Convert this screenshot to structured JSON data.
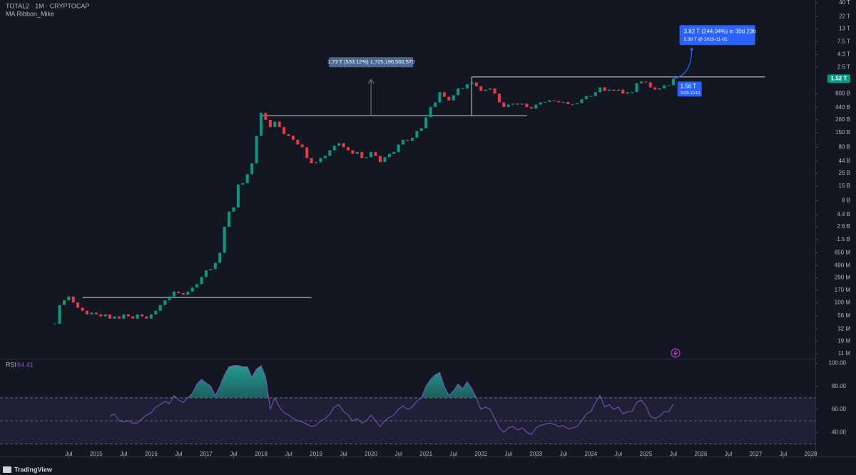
{
  "chart_data": {
    "type": "candlestick",
    "symbol": "TOTAL2 · 1M · CRYPTOCAP",
    "indicator": "MA Ribbon_Mike",
    "log_scale": true,
    "up_color": "#089981",
    "down_color": "#f23645",
    "xlim": [
      "2013-04",
      "2028-02"
    ],
    "ylim": [
      8900000.0,
      45000000000000.0
    ],
    "x": [
      "2014-04",
      "2014-05",
      "2014-06",
      "2014-07",
      "2014-08",
      "2014-09",
      "2014-10",
      "2014-11",
      "2014-12",
      "2015-01",
      "2015-02",
      "2015-03",
      "2015-04",
      "2015-05",
      "2015-06",
      "2015-07",
      "2015-08",
      "2015-09",
      "2015-10",
      "2015-11",
      "2015-12",
      "2016-01",
      "2016-02",
      "2016-03",
      "2016-04",
      "2016-05",
      "2016-06",
      "2016-07",
      "2016-08",
      "2016-09",
      "2016-10",
      "2016-11",
      "2016-12",
      "2017-01",
      "2017-02",
      "2017-03",
      "2017-04",
      "2017-05",
      "2017-06",
      "2017-07",
      "2017-08",
      "2017-09",
      "2017-10",
      "2017-11",
      "2017-12",
      "2018-01",
      "2018-02",
      "2018-03",
      "2018-04",
      "2018-05",
      "2018-06",
      "2018-07",
      "2018-08",
      "2018-09",
      "2018-10",
      "2018-11",
      "2018-12",
      "2019-01",
      "2019-02",
      "2019-03",
      "2019-04",
      "2019-05",
      "2019-06",
      "2019-07",
      "2019-08",
      "2019-09",
      "2019-10",
      "2019-11",
      "2019-12",
      "2020-01",
      "2020-02",
      "2020-03",
      "2020-04",
      "2020-05",
      "2020-06",
      "2020-07",
      "2020-08",
      "2020-09",
      "2020-10",
      "2020-11",
      "2020-12",
      "2021-01",
      "2021-02",
      "2021-03",
      "2021-04",
      "2021-05",
      "2021-06",
      "2021-07",
      "2021-08",
      "2021-09",
      "2021-10",
      "2021-11",
      "2021-12",
      "2022-01",
      "2022-02",
      "2022-03",
      "2022-04",
      "2022-05",
      "2022-06",
      "2022-07",
      "2022-08",
      "2022-09",
      "2022-10",
      "2022-11",
      "2022-12",
      "2023-01",
      "2023-02",
      "2023-03",
      "2023-04",
      "2023-05",
      "2023-06",
      "2023-07",
      "2023-08",
      "2023-09",
      "2023-10",
      "2023-11",
      "2023-12",
      "2024-01",
      "2024-02",
      "2024-03",
      "2024-04",
      "2024-05",
      "2024-06",
      "2024-07",
      "2024-08",
      "2024-09",
      "2024-10",
      "2024-11",
      "2024-12",
      "2025-01",
      "2025-02",
      "2025-03",
      "2025-04",
      "2025-05",
      "2025-06",
      "2025-07"
    ],
    "candles": {
      "values": [
        40000000.0,
        90000000.0,
        110000000.0,
        130000000.0,
        100000000.0,
        80000000.0,
        70000000.0,
        60000000.0,
        65000000.0,
        60000000.0,
        55000000.0,
        60000000.0,
        50000000.0,
        55000000.0,
        50000000.0,
        60000000.0,
        55000000.0,
        50000000.0,
        60000000.0,
        55000000.0,
        50000000.0,
        60000000.0,
        70000000.0,
        90000000.0,
        110000000.0,
        130000000.0,
        160000000.0,
        150000000.0,
        140000000.0,
        160000000.0,
        190000000.0,
        220000000.0,
        300000000.0,
        400000000.0,
        420000000.0,
        550000000.0,
        850000000.0,
        2600000000.0,
        5000000000.0,
        6000000000.0,
        16000000000.0,
        17000000000.0,
        25000000000.0,
        40000000000.0,
        130000000000.0,
        350000000000.0,
        260000000000.0,
        190000000000.0,
        240000000000.0,
        190000000000.0,
        140000000000.0,
        130000000000.0,
        110000000000.0,
        90000000000.0,
        80000000000.0,
        50000000000.0,
        40000000000.0,
        42000000000.0,
        50000000000.0,
        55000000000.0,
        70000000000.0,
        85000000000.0,
        95000000000.0,
        80000000000.0,
        70000000000.0,
        60000000000.0,
        65000000000.0,
        50000000000.0,
        52000000000.0,
        65000000000.0,
        55000000000.0,
        42000000000.0,
        52000000000.0,
        60000000000.0,
        65000000000.0,
        90000000000.0,
        110000000000.0,
        105000000000.0,
        120000000000.0,
        160000000000.0,
        180000000000.0,
        290000000000.0,
        450000000000.0,
        550000000000.0,
        850000000000.0,
        700000000000.0,
        600000000000.0,
        750000000000.0,
        1000000000000.0,
        1000000000000.0,
        1200000000000.0,
        1300000000000.0,
        1100000000000.0,
        900000000000.0,
        950000000000.0,
        1000000000000.0,
        800000000000.0,
        550000000000.0,
        450000000000.0,
        500000000000.0,
        520000000000.0,
        500000000000.0,
        520000000000.0,
        450000000000.0,
        420000000000.0,
        500000000000.0,
        550000000000.0,
        560000000000.0,
        600000000000.0,
        580000000000.0,
        550000000000.0,
        560000000000.0,
        510000000000.0,
        510000000000.0,
        530000000000.0,
        630000000000.0,
        720000000000.0,
        720000000000.0,
        850000000000.0,
        1050000000000.0,
        900000000000.0,
        950000000000.0,
        900000000000.0,
        950000000000.0,
        800000000000.0,
        850000000000.0,
        860000000000.0,
        1250000000000.0,
        1350000000000.0,
        1300000000000.0,
        1050000000000.0,
        950000000000.0,
        1000000000000.0,
        1150000000000.0,
        1150000000000.0,
        1520000000000.0
      ]
    },
    "yticks": [
      {
        "value": 40000000000000.0,
        "label": "40 T"
      },
      {
        "value": 22000000000000.0,
        "label": "22 T"
      },
      {
        "value": 13000000000000.0,
        "label": "13 T"
      },
      {
        "value": 7500000000000.0,
        "label": "7.5 T"
      },
      {
        "value": 4300000000000.0,
        "label": "4.3 T"
      },
      {
        "value": 2500000000000.0,
        "label": "2.5 T"
      },
      {
        "value": 800000000000.0,
        "label": "800 B"
      },
      {
        "value": 440000000000.0,
        "label": "440 B"
      },
      {
        "value": 260000000000.0,
        "label": "260 B"
      },
      {
        "value": 150000000000.0,
        "label": "150 B"
      },
      {
        "value": 80000000000.0,
        "label": "80 B"
      },
      {
        "value": 44000000000.0,
        "label": "44 B"
      },
      {
        "value": 26000000000.0,
        "label": "26 B"
      },
      {
        "value": 15000000000.0,
        "label": "15 B"
      },
      {
        "value": 8000000000.0,
        "label": "8 B"
      },
      {
        "value": 4400000000.0,
        "label": "4.4 B"
      },
      {
        "value": 2600000000.0,
        "label": "2.6 B"
      },
      {
        "value": 1500000000.0,
        "label": "1.5 B"
      },
      {
        "value": 850000000.0,
        "label": "850 M"
      },
      {
        "value": 490000000.0,
        "label": "490 M"
      },
      {
        "value": 290000000.0,
        "label": "290 M"
      },
      {
        "value": 170000000.0,
        "label": "170 M"
      },
      {
        "value": 100000000.0,
        "label": "100 M"
      },
      {
        "value": 56000000.0,
        "label": "56 M"
      },
      {
        "value": 32000000.0,
        "label": "32 M"
      },
      {
        "value": 19000000.0,
        "label": "19 M"
      },
      {
        "value": 11000000.0,
        "label": "11 M"
      }
    ],
    "last_price": {
      "value": 1520000000000.0,
      "label": "1.52 T"
    },
    "xticks": [
      {
        "value": "2014-07",
        "label": "Jul"
      },
      {
        "value": "2015-01",
        "label": "2015"
      },
      {
        "value": "2015-07",
        "label": "Jul"
      },
      {
        "value": "2016-01",
        "label": "2016"
      },
      {
        "value": "2016-07",
        "label": "Jul"
      },
      {
        "value": "2017-01",
        "label": "2017"
      },
      {
        "value": "2017-07",
        "label": "Jul"
      },
      {
        "value": "2018-01",
        "label": "2018"
      },
      {
        "value": "2018-07",
        "label": "Jul"
      },
      {
        "value": "2019-01",
        "label": "2019"
      },
      {
        "value": "2019-07",
        "label": "Jul"
      },
      {
        "value": "2020-01",
        "label": "2020"
      },
      {
        "value": "2020-07",
        "label": "Jul"
      },
      {
        "value": "2021-01",
        "label": "2021"
      },
      {
        "value": "2021-07",
        "label": "Jul"
      },
      {
        "value": "2022-01",
        "label": "2022"
      },
      {
        "value": "2022-07",
        "label": "Jul"
      },
      {
        "value": "2023-01",
        "label": "2023"
      },
      {
        "value": "2023-07",
        "label": "Jul"
      },
      {
        "value": "2024-01",
        "label": "2024"
      },
      {
        "value": "2024-07",
        "label": "Jul"
      },
      {
        "value": "2025-01",
        "label": "2025"
      },
      {
        "value": "2025-07",
        "label": "Jul"
      },
      {
        "value": "2026-01",
        "label": "2026"
      },
      {
        "value": "2026-07",
        "label": "Jul"
      },
      {
        "value": "2027-01",
        "label": "2027"
      },
      {
        "value": "2027-07",
        "label": "Jul"
      },
      {
        "value": "2028-01",
        "label": "2028"
      }
    ],
    "levels": [
      {
        "value": 124000000.0,
        "from": "2014-10",
        "to": "2018-12"
      },
      {
        "value": 310000000000.0,
        "from": "2018-01",
        "to": "2022-11"
      },
      {
        "value": 1640000000000.0,
        "from": "2021-11",
        "to": "2027-03"
      }
    ],
    "measure": {
      "text": "1.73 T (533.12%) 1,725,190,560,570",
      "x": "2020-01"
    },
    "forecast": {
      "text": "3.82 T (244.04%) in 30d 23h",
      "target_text": "5.38 T @ 2025-11-01",
      "target": 5380000000000.0,
      "date": "2025-11"
    },
    "marker": {
      "text": "1.56 T",
      "date_text": "2025-10-01"
    },
    "rsi": {
      "name": "RSI",
      "color": "#7e57c2",
      "fill_color": "#26a69a",
      "ylim": [
        19,
        104
      ],
      "yticks": [
        {
          "value": 100,
          "label": "100.00"
        },
        {
          "value": 80,
          "label": "80.00"
        },
        {
          "value": 60,
          "label": "60.00"
        },
        {
          "value": 40,
          "label": "40.00"
        }
      ],
      "bands": [
        70,
        50,
        30
      ],
      "values": [
        null,
        null,
        null,
        null,
        null,
        null,
        null,
        null,
        null,
        null,
        null,
        null,
        54,
        56,
        50,
        49,
        50,
        48,
        48,
        52,
        55,
        57,
        62,
        64,
        67,
        65,
        72,
        68,
        66,
        70,
        74,
        82,
        86,
        83,
        80,
        72,
        80,
        90,
        97,
        98,
        98,
        97,
        97,
        88,
        95,
        98,
        88,
        60,
        70,
        62,
        57,
        55,
        52,
        50,
        49,
        47,
        45,
        46,
        50,
        52,
        56,
        62,
        64,
        58,
        55,
        50,
        52,
        48,
        50,
        55,
        50,
        45,
        50,
        53,
        55,
        60,
        63,
        60,
        62,
        67,
        70,
        80,
        86,
        90,
        92,
        80,
        72,
        76,
        82,
        78,
        84,
        78,
        70,
        60,
        62,
        60,
        52,
        44,
        40,
        44,
        45,
        42,
        44,
        40,
        38,
        44,
        46,
        47,
        48,
        47,
        45,
        46,
        43,
        44,
        45,
        50,
        56,
        58,
        66,
        72,
        62,
        64,
        60,
        62,
        56,
        58,
        58,
        66,
        68,
        63,
        54,
        52,
        54,
        58,
        58,
        64.41
      ]
    },
    "footer": "TradingView"
  }
}
